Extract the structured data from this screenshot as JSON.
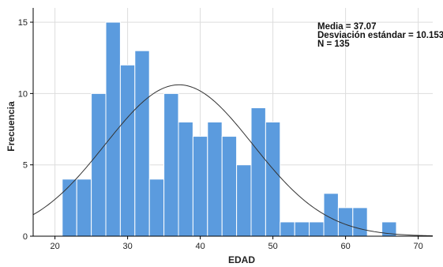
{
  "chart_data": {
    "type": "bar",
    "xlabel": "EDAD",
    "ylabel": "Frecuencia",
    "xlim": [
      17,
      72
    ],
    "ylim": [
      0,
      16
    ],
    "x_ticks": [
      20,
      30,
      40,
      50,
      60,
      70
    ],
    "y_ticks": [
      0,
      5,
      10,
      15
    ],
    "grid": true,
    "bin_width": 2,
    "bins": [
      {
        "start": 21,
        "end": 23,
        "count": 4
      },
      {
        "start": 23,
        "end": 25,
        "count": 4
      },
      {
        "start": 25,
        "end": 27,
        "count": 10
      },
      {
        "start": 27,
        "end": 29,
        "count": 15
      },
      {
        "start": 29,
        "end": 31,
        "count": 12
      },
      {
        "start": 31,
        "end": 33,
        "count": 13
      },
      {
        "start": 33,
        "end": 35,
        "count": 4
      },
      {
        "start": 35,
        "end": 37,
        "count": 10
      },
      {
        "start": 37,
        "end": 39,
        "count": 8
      },
      {
        "start": 39,
        "end": 41,
        "count": 7
      },
      {
        "start": 41,
        "end": 43,
        "count": 8
      },
      {
        "start": 43,
        "end": 45,
        "count": 7
      },
      {
        "start": 45,
        "end": 47,
        "count": 5
      },
      {
        "start": 47,
        "end": 49,
        "count": 9
      },
      {
        "start": 49,
        "end": 51,
        "count": 8
      },
      {
        "start": 51,
        "end": 53,
        "count": 1
      },
      {
        "start": 53,
        "end": 55,
        "count": 1
      },
      {
        "start": 55,
        "end": 57,
        "count": 1
      },
      {
        "start": 57,
        "end": 59,
        "count": 3
      },
      {
        "start": 59,
        "end": 61,
        "count": 2
      },
      {
        "start": 61,
        "end": 63,
        "count": 2
      },
      {
        "start": 63,
        "end": 65,
        "count": 0
      },
      {
        "start": 65,
        "end": 67,
        "count": 1
      }
    ],
    "normal_curve": {
      "mean": 37.07,
      "sd": 10.153,
      "n": 135
    },
    "stats": {
      "mean_label": "Media = 37.07",
      "sd_label": "Desviación estándar = 10.153",
      "n_label": "N = 135"
    },
    "colors": {
      "bar_fill": "#5b9bde",
      "bar_edge": "#ffffff",
      "curve": "#333333",
      "grid": "#dddddd",
      "axis": "#000000"
    }
  }
}
